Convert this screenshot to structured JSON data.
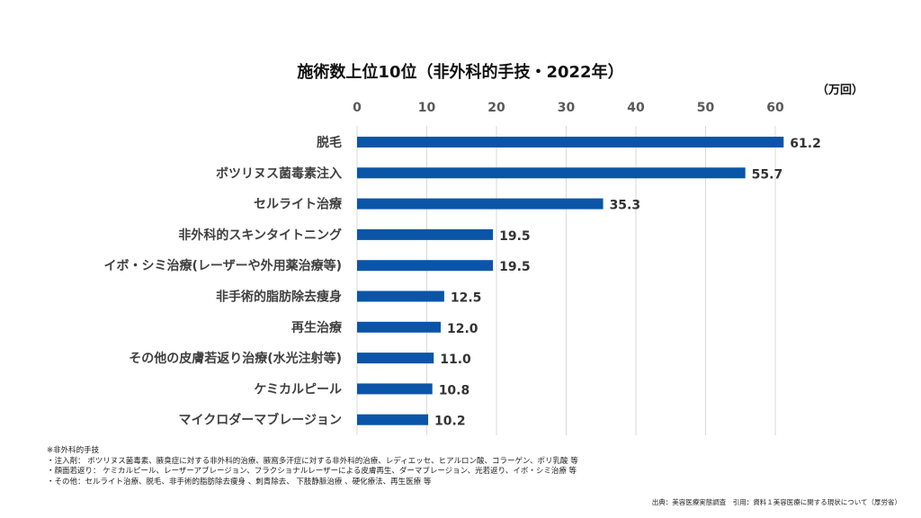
{
  "chart_data": {
    "type": "bar",
    "orientation": "horizontal",
    "title": "施術数上位10位（非外科的手技・2022年）",
    "unit_label": "（万回）",
    "xlabel": "",
    "ylabel": "",
    "xlim": [
      0,
      62
    ],
    "xticks": [
      0,
      10,
      20,
      30,
      40,
      50,
      60
    ],
    "x_axis_position": "top",
    "grid": true,
    "bar_color": "#0a55a8",
    "categories": [
      "脱毛",
      "ボツリヌス菌毒素注入",
      "セルライト治療",
      "非外科的スキンタイトニング",
      "イボ・シミ治療(レーザーや外用薬治療等)",
      "非手術的脂肪除去痩身",
      "再生治療",
      "その他の皮膚若返り治療(水光注射等)",
      "ケミカルピール",
      "マイクロダーマブレージョン"
    ],
    "values": [
      61.2,
      55.7,
      35.3,
      19.5,
      19.5,
      12.5,
      12.0,
      11.0,
      10.8,
      10.2
    ],
    "value_labels": [
      "61.2",
      "55.7",
      "35.3",
      "19.5",
      "19.5",
      "12.5",
      "12.0",
      "11.0",
      "10.8",
      "10.2"
    ]
  },
  "notes": {
    "heading": "※非外科的手技",
    "lines": [
      "・注入剤： ボツリヌス菌毒素、腋臭症に対する非外科的治療、腋窩多汗症に対する非外科的治療、レディエッセ、ヒアルロン酸、コラーゲン、ポリ乳酸 等",
      "・顔面若返り： ケミカルピール、レーザーアブレージョン、フラクショナルレーザーによる皮膚再生、ダーマブレージョン、光若返り、イボ・シミ治療 等",
      "・その他：セルライト治療、脱毛、非手術的脂肪除去痩身 、刺青除去、 下肢静脈治療 、硬化療法、再生医療 等"
    ]
  },
  "source": "出典：美容医療実態調査　引用：資料１美容医療に関する現状について（厚労省）"
}
